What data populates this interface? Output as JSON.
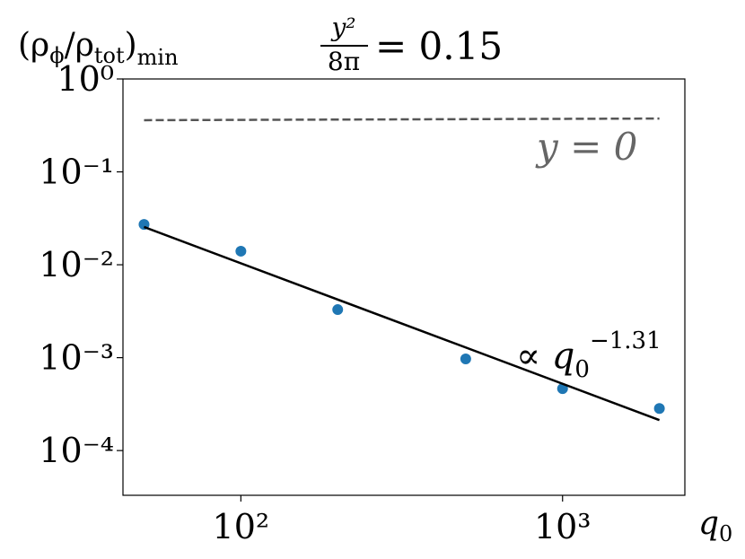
{
  "chart_data": {
    "type": "scatter",
    "title": {
      "numerator": "y²",
      "denominator": "8π",
      "rest": "= 0.15"
    },
    "ylabel": [
      "(ρ",
      "ϕ",
      "/ρ",
      "tot",
      ")",
      "min"
    ],
    "xlabel": [
      "q",
      "0"
    ],
    "log_x": true,
    "log_y": true,
    "xlim": [
      43,
      2400
    ],
    "ylim": [
      3.3e-05,
      1
    ],
    "xticks": [
      {
        "value": 100,
        "label": "10²"
      },
      {
        "value": 1000,
        "label": "10³"
      }
    ],
    "yticks": [
      {
        "value": 1,
        "label": "10⁰"
      },
      {
        "value": 0.1,
        "label": "10⁻¹"
      },
      {
        "value": 0.01,
        "label": "10⁻²"
      },
      {
        "value": 0.001,
        "label": "10⁻³"
      },
      {
        "value": 0.0001,
        "label": "10⁻⁴"
      }
    ],
    "series": [
      {
        "style": "points",
        "color": "#1f77b4",
        "x": [
          50,
          100,
          200,
          500,
          1000,
          2000
        ],
        "values": [
          0.0272,
          0.014,
          0.00329,
          0.00097,
          0.000464,
          0.000284
        ]
      },
      {
        "style": "line",
        "color": "#000000",
        "x": [
          50,
          2000
        ],
        "values": [
          0.0255,
          0.000213
        ]
      },
      {
        "style": "dashed",
        "color": "#555555",
        "x": [
          50,
          2000
        ],
        "values": [
          0.36,
          0.375
        ]
      }
    ],
    "annotations": {
      "fit": [
        "∝ q",
        "0",
        "−1.31"
      ],
      "reference": "y = 0"
    }
  }
}
